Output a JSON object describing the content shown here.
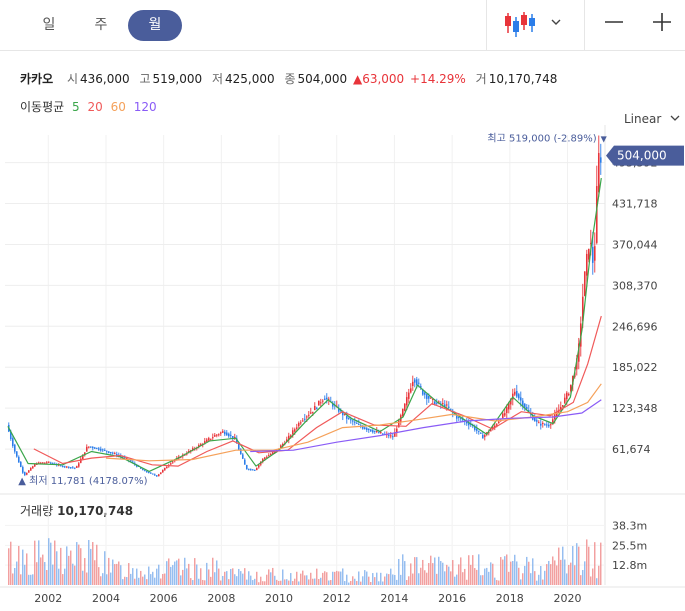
{
  "tabs": [
    {
      "label": "일",
      "active": false
    },
    {
      "label": "주",
      "active": false
    },
    {
      "label": "월",
      "active": true
    }
  ],
  "icons": {
    "candle": "candlestick-icon",
    "dropdown": "chevron-down-icon",
    "zoom_out": "minus-icon",
    "zoom_in": "plus-icon"
  },
  "stock": {
    "name": "카카오",
    "open_label": "시",
    "open": "436,000",
    "high_label": "고",
    "high": "519,000",
    "low_label": "저",
    "low": "425,000",
    "close_label": "종",
    "close": "504,000",
    "change": "63,000",
    "change_pct": "+14.29%",
    "volume_label": "거",
    "volume": "10,170,748"
  },
  "ma": {
    "label": "이동평균",
    "periods": [
      "5",
      "20",
      "60",
      "120"
    ],
    "colors": [
      "#3aa64a",
      "#f05a5a",
      "#f5a15a",
      "#8a5cf6"
    ]
  },
  "scale_mode": "Linear",
  "volume_panel": {
    "label": "거래량",
    "value": "10,170,748"
  },
  "colors": {
    "up": "#e8343a",
    "down": "#2b7de9",
    "accent": "#4a5d9b"
  },
  "chart_data": {
    "type": "candlestick",
    "y_ticks": [
      "61,674",
      "123,348",
      "185,022",
      "246,696",
      "308,370",
      "370,044",
      "431,718",
      "493,392"
    ],
    "x_ticks": [
      "2002",
      "2004",
      "2006",
      "2008",
      "2010",
      "2012",
      "2014",
      "2016",
      "2018",
      "2020"
    ],
    "ylim": [
      0,
      535000
    ],
    "xlim": [
      2000.5,
      2021.3
    ],
    "current_price": "504,000",
    "high_annotation": {
      "prefix": "최고",
      "value": "519,000 (-2.89%)",
      "price": 519000,
      "x": 2021.15
    },
    "low_annotation": {
      "prefix": "최저",
      "value": "11,781 (4178.07%)",
      "price": 11781,
      "x": 2001.1
    },
    "price_path": [
      [
        2000.6,
        98000
      ],
      [
        2000.9,
        55000
      ],
      [
        2001.2,
        22000
      ],
      [
        2001.6,
        40000
      ],
      [
        2002.0,
        42000
      ],
      [
        2002.5,
        36000
      ],
      [
        2003.0,
        33000
      ],
      [
        2003.4,
        66000
      ],
      [
        2003.8,
        62000
      ],
      [
        2004.3,
        55000
      ],
      [
        2004.8,
        46000
      ],
      [
        2005.3,
        30000
      ],
      [
        2005.8,
        21000
      ],
      [
        2006.3,
        42000
      ],
      [
        2006.8,
        55000
      ],
      [
        2007.3,
        68000
      ],
      [
        2007.8,
        82000
      ],
      [
        2008.1,
        88000
      ],
      [
        2008.5,
        78000
      ],
      [
        2008.9,
        32000
      ],
      [
        2009.2,
        30000
      ],
      [
        2009.5,
        48000
      ],
      [
        2009.9,
        58000
      ],
      [
        2010.3,
        75000
      ],
      [
        2010.8,
        105000
      ],
      [
        2011.2,
        120000
      ],
      [
        2011.6,
        140000
      ],
      [
        2012.0,
        125000
      ],
      [
        2012.4,
        108000
      ],
      [
        2012.9,
        95000
      ],
      [
        2013.5,
        86000
      ],
      [
        2014.0,
        80000
      ],
      [
        2014.4,
        128000
      ],
      [
        2014.7,
        170000
      ],
      [
        2015.0,
        148000
      ],
      [
        2015.4,
        132000
      ],
      [
        2015.8,
        128000
      ],
      [
        2016.2,
        110000
      ],
      [
        2016.7,
        98000
      ],
      [
        2017.1,
        80000
      ],
      [
        2017.5,
        96000
      ],
      [
        2017.9,
        118000
      ],
      [
        2018.2,
        150000
      ],
      [
        2018.6,
        122000
      ],
      [
        2019.0,
        100000
      ],
      [
        2019.4,
        98000
      ],
      [
        2019.8,
        125000
      ],
      [
        2020.1,
        150000
      ],
      [
        2020.4,
        200000
      ],
      [
        2020.6,
        310000
      ],
      [
        2020.8,
        380000
      ],
      [
        2020.95,
        335000
      ],
      [
        2021.1,
        500000
      ],
      [
        2021.17,
        504000
      ]
    ],
    "series": [
      {
        "name": "5",
        "color": "#3aa64a",
        "points": [
          [
            2000.6,
            96000
          ],
          [
            2001.3,
            40000
          ],
          [
            2002.5,
            38000
          ],
          [
            2003.5,
            58000
          ],
          [
            2004.5,
            50000
          ],
          [
            2005.5,
            28000
          ],
          [
            2006.5,
            48000
          ],
          [
            2007.6,
            74000
          ],
          [
            2008.5,
            78000
          ],
          [
            2009.2,
            36000
          ],
          [
            2010.0,
            60000
          ],
          [
            2010.9,
            102000
          ],
          [
            2011.7,
            136000
          ],
          [
            2012.5,
            108000
          ],
          [
            2013.5,
            88000
          ],
          [
            2014.3,
            110000
          ],
          [
            2014.8,
            158000
          ],
          [
            2015.5,
            132000
          ],
          [
            2016.5,
            104000
          ],
          [
            2017.2,
            84000
          ],
          [
            2018.1,
            140000
          ],
          [
            2018.8,
            112000
          ],
          [
            2019.5,
            100000
          ],
          [
            2020.1,
            140000
          ],
          [
            2020.5,
            240000
          ],
          [
            2020.8,
            360000
          ],
          [
            2021.17,
            470000
          ]
        ]
      },
      {
        "name": "20",
        "color": "#f05a5a",
        "points": [
          [
            2001.5,
            62000
          ],
          [
            2002.5,
            40000
          ],
          [
            2003.5,
            48000
          ],
          [
            2004.5,
            52000
          ],
          [
            2005.6,
            38000
          ],
          [
            2006.5,
            36000
          ],
          [
            2007.5,
            58000
          ],
          [
            2008.4,
            74000
          ],
          [
            2009.3,
            56000
          ],
          [
            2010.3,
            60000
          ],
          [
            2011.3,
            94000
          ],
          [
            2012.2,
            118000
          ],
          [
            2013.3,
            98000
          ],
          [
            2014.4,
            96000
          ],
          [
            2015.3,
            130000
          ],
          [
            2016.4,
            112000
          ],
          [
            2017.4,
            92000
          ],
          [
            2018.4,
            118000
          ],
          [
            2019.4,
            112000
          ],
          [
            2020.2,
            132000
          ],
          [
            2020.7,
            190000
          ],
          [
            2021.17,
            262000
          ]
        ]
      },
      {
        "name": "60",
        "color": "#f5a15a",
        "points": [
          [
            2004.0,
            48000
          ],
          [
            2005.5,
            44000
          ],
          [
            2007.0,
            46000
          ],
          [
            2008.5,
            60000
          ],
          [
            2009.8,
            60000
          ],
          [
            2011.0,
            72000
          ],
          [
            2012.2,
            94000
          ],
          [
            2013.5,
            98000
          ],
          [
            2014.8,
            106000
          ],
          [
            2016.0,
            114000
          ],
          [
            2017.5,
            104000
          ],
          [
            2018.8,
            110000
          ],
          [
            2020.0,
            118000
          ],
          [
            2020.7,
            132000
          ],
          [
            2021.17,
            160000
          ]
        ]
      },
      {
        "name": "120",
        "color": "#8a5cf6",
        "points": [
          [
            2009.0,
            58000
          ],
          [
            2010.5,
            60000
          ],
          [
            2012.0,
            72000
          ],
          [
            2013.5,
            82000
          ],
          [
            2015.0,
            94000
          ],
          [
            2016.5,
            104000
          ],
          [
            2018.0,
            108000
          ],
          [
            2019.5,
            110000
          ],
          [
            2020.5,
            116000
          ],
          [
            2021.17,
            136000
          ]
        ]
      }
    ],
    "volume_ticks": [
      "12.8m",
      "25.5m",
      "38.3m"
    ],
    "volume_max": 45000000
  }
}
